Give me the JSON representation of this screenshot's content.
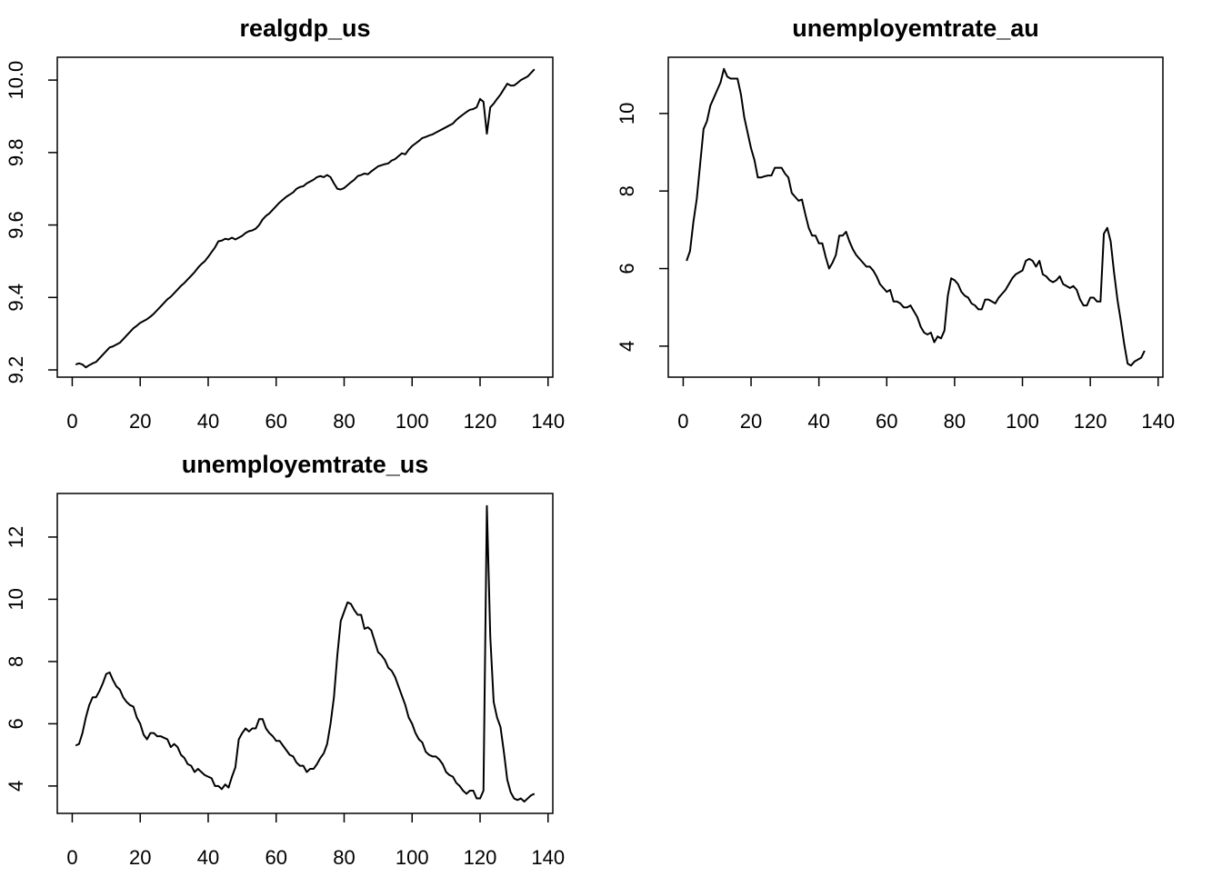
{
  "chart_data": [
    {
      "type": "line",
      "title": "realgdp_us",
      "color": "#000000",
      "x": [
        1,
        2,
        3,
        4,
        5,
        6,
        7,
        8,
        9,
        10,
        11,
        12,
        13,
        14,
        15,
        16,
        17,
        18,
        19,
        20,
        21,
        22,
        23,
        24,
        25,
        26,
        27,
        28,
        29,
        30,
        31,
        32,
        33,
        34,
        35,
        36,
        37,
        38,
        39,
        40,
        41,
        42,
        43,
        44,
        45,
        46,
        47,
        48,
        49,
        50,
        51,
        52,
        53,
        54,
        55,
        56,
        57,
        58,
        59,
        60,
        61,
        62,
        63,
        64,
        65,
        66,
        67,
        68,
        69,
        70,
        71,
        72,
        73,
        74,
        75,
        76,
        77,
        78,
        79,
        80,
        81,
        82,
        83,
        84,
        85,
        86,
        87,
        88,
        89,
        90,
        91,
        92,
        93,
        94,
        95,
        96,
        97,
        98,
        99,
        100,
        101,
        102,
        103,
        104,
        105,
        106,
        107,
        108,
        109,
        110,
        111,
        112,
        113,
        114,
        115,
        116,
        117,
        118,
        119,
        120,
        121,
        122,
        123,
        124,
        125,
        126,
        127,
        128,
        129,
        130,
        131,
        132,
        133,
        134,
        135,
        136
      ],
      "values": [
        9.215,
        9.218,
        9.215,
        9.207,
        9.213,
        9.218,
        9.222,
        9.232,
        9.242,
        9.252,
        9.262,
        9.265,
        9.27,
        9.275,
        9.285,
        9.295,
        9.305,
        9.315,
        9.322,
        9.33,
        9.335,
        9.34,
        9.347,
        9.355,
        9.365,
        9.375,
        9.385,
        9.395,
        9.402,
        9.412,
        9.422,
        9.432,
        9.44,
        9.45,
        9.46,
        9.47,
        9.482,
        9.492,
        9.5,
        9.512,
        9.525,
        9.538,
        9.555,
        9.557,
        9.562,
        9.56,
        9.565,
        9.56,
        9.565,
        9.57,
        9.578,
        9.583,
        9.585,
        9.59,
        9.6,
        9.615,
        9.625,
        9.632,
        9.642,
        9.652,
        9.662,
        9.67,
        9.678,
        9.684,
        9.69,
        9.7,
        9.705,
        9.707,
        9.715,
        9.72,
        9.725,
        9.732,
        9.735,
        9.732,
        9.738,
        9.732,
        9.715,
        9.7,
        9.698,
        9.702,
        9.71,
        9.718,
        9.725,
        9.735,
        9.738,
        9.742,
        9.74,
        9.748,
        9.755,
        9.762,
        9.765,
        9.768,
        9.77,
        9.778,
        9.782,
        9.79,
        9.798,
        9.795,
        9.808,
        9.818,
        9.825,
        9.832,
        9.84,
        9.843,
        9.847,
        9.85,
        9.855,
        9.86,
        9.865,
        9.87,
        9.875,
        9.88,
        9.89,
        9.898,
        9.905,
        9.912,
        9.918,
        9.92,
        9.925,
        9.948,
        9.94,
        9.852,
        9.925,
        9.935,
        9.948,
        9.96,
        9.975,
        9.99,
        9.985,
        9.985,
        9.992,
        10.0,
        10.005,
        10.01,
        10.02,
        10.03
      ],
      "xlim": [
        -4.4,
        141.4
      ],
      "xticks": [
        0,
        20,
        40,
        60,
        80,
        100,
        120,
        140
      ],
      "ylim": [
        9.18,
        10.063
      ],
      "yticks": [
        9.2,
        9.4,
        9.6,
        9.8,
        {
          "value": 10,
          "label": "10.0"
        }
      ]
    },
    {
      "type": "line",
      "title": "unemployemtrate_au",
      "color": "#000000",
      "x": [
        1,
        2,
        3,
        4,
        5,
        6,
        7,
        8,
        9,
        10,
        11,
        12,
        13,
        14,
        15,
        16,
        17,
        18,
        19,
        20,
        21,
        22,
        23,
        24,
        25,
        26,
        27,
        28,
        29,
        30,
        31,
        32,
        33,
        34,
        35,
        36,
        37,
        38,
        39,
        40,
        41,
        42,
        43,
        44,
        45,
        46,
        47,
        48,
        49,
        50,
        51,
        52,
        53,
        54,
        55,
        56,
        57,
        58,
        59,
        60,
        61,
        62,
        63,
        64,
        65,
        66,
        67,
        68,
        69,
        70,
        71,
        72,
        73,
        74,
        75,
        76,
        77,
        78,
        79,
        80,
        81,
        82,
        83,
        84,
        85,
        86,
        87,
        88,
        89,
        90,
        91,
        92,
        93,
        94,
        95,
        96,
        97,
        98,
        99,
        100,
        101,
        102,
        103,
        104,
        105,
        106,
        107,
        108,
        109,
        110,
        111,
        112,
        113,
        114,
        115,
        116,
        117,
        118,
        119,
        120,
        121,
        122,
        123,
        124,
        125,
        126,
        127,
        128,
        129,
        130,
        131,
        132,
        133,
        134,
        135,
        136
      ],
      "values": [
        6.2,
        6.45,
        7.2,
        7.8,
        8.7,
        9.6,
        9.8,
        10.2,
        10.4,
        10.6,
        10.8,
        11.15,
        10.95,
        10.9,
        10.9,
        10.9,
        10.5,
        9.9,
        9.5,
        9.1,
        8.8,
        8.35,
        8.35,
        8.38,
        8.4,
        8.4,
        8.6,
        8.6,
        8.6,
        8.45,
        8.35,
        7.95,
        7.85,
        7.75,
        7.78,
        7.4,
        7.05,
        6.85,
        6.85,
        6.65,
        6.65,
        6.3,
        6.0,
        6.15,
        6.35,
        6.85,
        6.85,
        6.95,
        6.7,
        6.5,
        6.35,
        6.25,
        6.15,
        6.05,
        6.05,
        5.95,
        5.8,
        5.6,
        5.5,
        5.4,
        5.45,
        5.15,
        5.15,
        5.1,
        5.0,
        5.0,
        5.05,
        4.9,
        4.75,
        4.5,
        4.35,
        4.3,
        4.35,
        4.1,
        4.25,
        4.2,
        4.4,
        5.3,
        5.75,
        5.7,
        5.6,
        5.4,
        5.3,
        5.25,
        5.1,
        5.05,
        4.95,
        4.95,
        5.2,
        5.2,
        5.15,
        5.1,
        5.25,
        5.35,
        5.45,
        5.6,
        5.75,
        5.85,
        5.9,
        5.95,
        6.2,
        6.25,
        6.2,
        6.05,
        6.2,
        5.85,
        5.8,
        5.7,
        5.65,
        5.7,
        5.8,
        5.6,
        5.55,
        5.5,
        5.55,
        5.45,
        5.2,
        5.05,
        5.05,
        5.25,
        5.25,
        5.15,
        5.15,
        6.9,
        7.05,
        6.7,
        5.9,
        5.2,
        4.65,
        4.05,
        3.55,
        3.5,
        3.6,
        3.65,
        3.7,
        3.88
      ],
      "xlim": [
        -4.4,
        141.4
      ],
      "xticks": [
        0,
        20,
        40,
        60,
        80,
        100,
        120,
        140
      ],
      "ylim": [
        3.2,
        11.45
      ],
      "yticks": [
        4,
        6,
        8,
        10
      ]
    },
    {
      "type": "line",
      "title": "unemployemtrate_us",
      "color": "#000000",
      "x": [
        1,
        2,
        3,
        4,
        5,
        6,
        7,
        8,
        9,
        10,
        11,
        12,
        13,
        14,
        15,
        16,
        17,
        18,
        19,
        20,
        21,
        22,
        23,
        24,
        25,
        26,
        27,
        28,
        29,
        30,
        31,
        32,
        33,
        34,
        35,
        36,
        37,
        38,
        39,
        40,
        41,
        42,
        43,
        44,
        45,
        46,
        47,
        48,
        49,
        50,
        51,
        52,
        53,
        54,
        55,
        56,
        57,
        58,
        59,
        60,
        61,
        62,
        63,
        64,
        65,
        66,
        67,
        68,
        69,
        70,
        71,
        72,
        73,
        74,
        75,
        76,
        77,
        78,
        79,
        80,
        81,
        82,
        83,
        84,
        85,
        86,
        87,
        88,
        89,
        90,
        91,
        92,
        93,
        94,
        95,
        96,
        97,
        98,
        99,
        100,
        101,
        102,
        103,
        104,
        105,
        106,
        107,
        108,
        109,
        110,
        111,
        112,
        113,
        114,
        115,
        116,
        117,
        118,
        119,
        120,
        121,
        122,
        123,
        124,
        125,
        126,
        127,
        128,
        129,
        130,
        131,
        132,
        133,
        134,
        135,
        136
      ],
      "values": [
        5.3,
        5.35,
        5.7,
        6.2,
        6.6,
        6.85,
        6.85,
        7.05,
        7.3,
        7.6,
        7.65,
        7.4,
        7.2,
        7.1,
        6.85,
        6.7,
        6.6,
        6.55,
        6.2,
        6.0,
        5.65,
        5.5,
        5.7,
        5.7,
        5.6,
        5.6,
        5.55,
        5.5,
        5.25,
        5.35,
        5.25,
        5.0,
        4.9,
        4.7,
        4.65,
        4.45,
        4.55,
        4.45,
        4.35,
        4.3,
        4.25,
        4.0,
        4.0,
        3.9,
        4.05,
        3.95,
        4.3,
        4.6,
        5.5,
        5.7,
        5.85,
        5.75,
        5.85,
        5.85,
        6.15,
        6.15,
        5.85,
        5.7,
        5.6,
        5.45,
        5.45,
        5.3,
        5.15,
        5.0,
        4.95,
        4.75,
        4.65,
        4.65,
        4.45,
        4.55,
        4.55,
        4.7,
        4.9,
        5.05,
        5.35,
        6.0,
        6.85,
        8.2,
        9.3,
        9.6,
        9.9,
        9.85,
        9.65,
        9.5,
        9.5,
        9.05,
        9.1,
        9.0,
        8.65,
        8.3,
        8.2,
        8.05,
        7.8,
        7.7,
        7.5,
        7.2,
        6.9,
        6.6,
        6.2,
        6.0,
        5.7,
        5.5,
        5.4,
        5.1,
        5.0,
        4.95,
        4.95,
        4.85,
        4.7,
        4.45,
        4.35,
        4.3,
        4.1,
        4.0,
        3.85,
        3.75,
        3.85,
        3.85,
        3.6,
        3.6,
        3.85,
        13.0,
        8.8,
        6.7,
        6.2,
        5.9,
        5.1,
        4.2,
        3.8,
        3.6,
        3.55,
        3.6,
        3.5,
        3.6,
        3.7,
        3.75
      ],
      "xlim": [
        -4.4,
        141.4
      ],
      "xticks": [
        0,
        20,
        40,
        60,
        80,
        100,
        120,
        140
      ],
      "ylim": [
        3.12,
        13.4
      ],
      "yticks": [
        4,
        6,
        8,
        10,
        12
      ]
    }
  ]
}
